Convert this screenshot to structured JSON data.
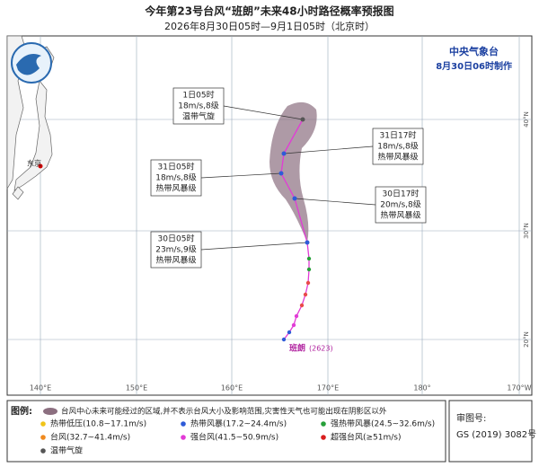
{
  "header": {
    "title": "今年第23号台风“班朗”未来48小时路径概率预报图",
    "subtitle": "2026年8月30日05时—9月1日05时（北京时）",
    "agency": "中央气象台",
    "made": "8月30日06时制作"
  },
  "map": {
    "city": "东京",
    "typhoon_name": "班朗",
    "typhoon_id": "(2623)",
    "lon_labels": [
      "140°E",
      "150°E",
      "160°E",
      "170°E",
      "180°",
      "170°W"
    ],
    "lat_labels": [
      "40°N",
      "30°N",
      "20°N"
    ],
    "callouts": [
      {
        "time": "1日05时",
        "wind": "18m/s,8级",
        "level": "温带气旋"
      },
      {
        "time": "31日17时",
        "wind": "18m/s,8级",
        "level": "热带风暴级"
      },
      {
        "time": "31日05时",
        "wind": "18m/s,8级",
        "level": "热带风暴级"
      },
      {
        "time": "30日17时",
        "wind": "20m/s,8级",
        "level": "热带风暴级"
      },
      {
        "time": "30日05时",
        "wind": "23m/s,9级",
        "level": "热带风暴级"
      }
    ]
  },
  "legend": {
    "title": "图例:",
    "area_note": "台风中心未来可能经过的区域,并不表示台风大小及影响范围,灾害性天气也可能出现在阴影区以外",
    "items": [
      "热带低压(10.8~17.1m/s)",
      "热带风暴(17.2~24.4m/s)",
      "强热带风暴(24.5~32.6m/s)",
      "台风(32.7~41.4m/s)",
      "强台风(41.5~50.9m/s)",
      "超强台风(≥51m/s)",
      "温带气旋"
    ],
    "review_label": "审图号:",
    "review_no": "GS (2019) 3082号"
  }
}
